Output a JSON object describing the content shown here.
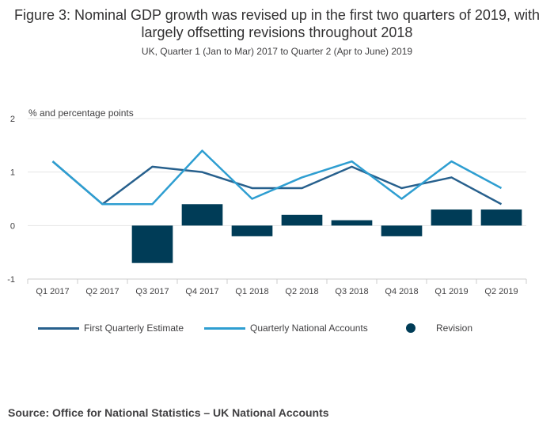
{
  "title": "Figure 3: Nominal GDP growth was revised up in the first two quarters of 2019, with largely offsetting revisions throughout 2018",
  "subtitle": "UK, Quarter 1 (Jan to Mar) 2017 to Quarter 2 (Apr to June) 2019",
  "source": "Source: Office for National Statistics – UK National Accounts",
  "colors": {
    "first_estimate": "#27608d",
    "quarterly_na": "#2e9ed1",
    "revision": "#003c57",
    "grid": "#e4e4e4"
  },
  "chart_data": {
    "type": "bar+line",
    "title": "Figure 3: Nominal GDP growth was revised up in the first two quarters of 2019, with largely offsetting revisions throughout 2018",
    "subtitle": "UK, Quarter 1 (Jan to Mar) 2017 to Quarter 2 (Apr to June) 2019",
    "ylabel": "% and percentage points",
    "ylim": [
      -1,
      2
    ],
    "yticks": [
      -1,
      0,
      1,
      2
    ],
    "grid": true,
    "legend_position": "bottom",
    "categories": [
      "Q1 2017",
      "Q2 2017",
      "Q3 2017",
      "Q4 2017",
      "Q1 2018",
      "Q2 2018",
      "Q3 2018",
      "Q4 2018",
      "Q1 2019",
      "Q2 2019"
    ],
    "series": [
      {
        "name": "First Quarterly Estimate",
        "kind": "line",
        "values": [
          1.2,
          0.4,
          1.1,
          1.0,
          0.7,
          0.7,
          1.1,
          0.7,
          0.9,
          0.4
        ]
      },
      {
        "name": "Quarterly National Accounts",
        "kind": "line",
        "values": [
          1.2,
          0.4,
          0.4,
          1.4,
          0.5,
          0.9,
          1.2,
          0.5,
          1.2,
          0.7
        ]
      },
      {
        "name": "Revision",
        "kind": "bar",
        "values": [
          0.0,
          0.0,
          -0.7,
          0.4,
          -0.2,
          0.2,
          0.1,
          -0.2,
          0.3,
          0.3
        ]
      }
    ]
  }
}
